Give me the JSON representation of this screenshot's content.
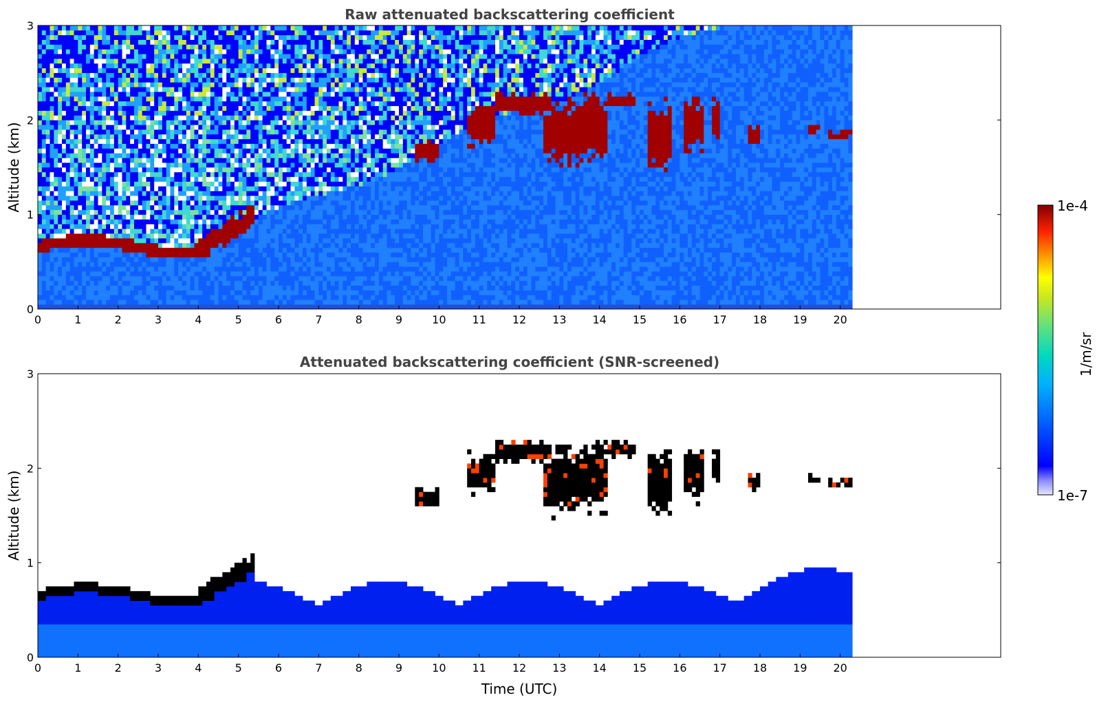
{
  "chart_data": [
    {
      "type": "heatmap",
      "title": "Raw attenuated backscattering coefficient",
      "xlabel": "",
      "ylabel": "Altitude (km)",
      "xlim": [
        0,
        24
      ],
      "ylim": [
        0,
        3
      ],
      "data_extent_hours": [
        0,
        20.3
      ],
      "xticks": [
        "0",
        "1",
        "2",
        "3",
        "4",
        "5",
        "6",
        "7",
        "8",
        "9",
        "10",
        "11",
        "12",
        "13",
        "14",
        "15",
        "16",
        "17",
        "18",
        "19",
        "20"
      ],
      "yticks": [
        "0",
        "1",
        "2",
        "3"
      ],
      "features": [
        {
          "name": "boundary layer top",
          "time": [
            0,
            5.4
          ],
          "altitude_km": [
            0.55,
            1.1
          ],
          "level": "high"
        },
        {
          "name": "cloud layer",
          "time": [
            9.4,
            20.3
          ],
          "altitude_km": [
            1.5,
            2.4
          ],
          "level": "high"
        },
        {
          "name": "noise",
          "time": [
            0,
            20.3
          ],
          "altitude_km": [
            0,
            3.0
          ],
          "level": "speckled"
        }
      ]
    },
    {
      "type": "heatmap",
      "title": "Attenuated backscattering coefficient (SNR-screened)",
      "xlabel": "Time (UTC)",
      "ylabel": "Altitude (km)",
      "xlim": [
        0,
        24
      ],
      "ylim": [
        0,
        3
      ],
      "data_extent_hours": [
        0,
        20.3
      ],
      "xticks": [
        "0",
        "1",
        "2",
        "3",
        "4",
        "5",
        "6",
        "7",
        "8",
        "9",
        "10",
        "11",
        "12",
        "13",
        "14",
        "15",
        "16",
        "17",
        "18",
        "19",
        "20"
      ],
      "yticks": [
        "0",
        "1",
        "2",
        "3"
      ],
      "features": [
        {
          "name": "boundary layer top",
          "time": [
            0,
            5.4
          ],
          "altitude_km": [
            0.55,
            1.1
          ],
          "level": "saturated"
        },
        {
          "name": "cloud layer",
          "time": [
            9.4,
            20.3
          ],
          "altitude_km": [
            1.5,
            2.4
          ],
          "level": "saturated"
        },
        {
          "name": "screened signal",
          "time": [
            0,
            20.3
          ],
          "altitude_km": [
            0,
            0.95
          ],
          "level": "low"
        }
      ]
    }
  ],
  "colorbar": {
    "label": "1/m/sr",
    "max_label": "1e-4",
    "min_label": "1e-7",
    "colors": [
      "#e6e6fa",
      "#0000ff",
      "#0080ff",
      "#00d0d0",
      "#40e080",
      "#c0e020",
      "#ffff00",
      "#ff8000",
      "#ff2000",
      "#c00000",
      "#800000"
    ]
  }
}
